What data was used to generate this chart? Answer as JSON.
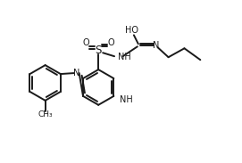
{
  "bg_color": "#ffffff",
  "line_color": "#1a1a1a",
  "line_width": 1.4,
  "font_size": 7.0,
  "figsize": [
    2.71,
    1.83
  ],
  "dpi": 100,
  "xlim": [
    0.0,
    2.71
  ],
  "ylim": [
    0.0,
    1.83
  ]
}
